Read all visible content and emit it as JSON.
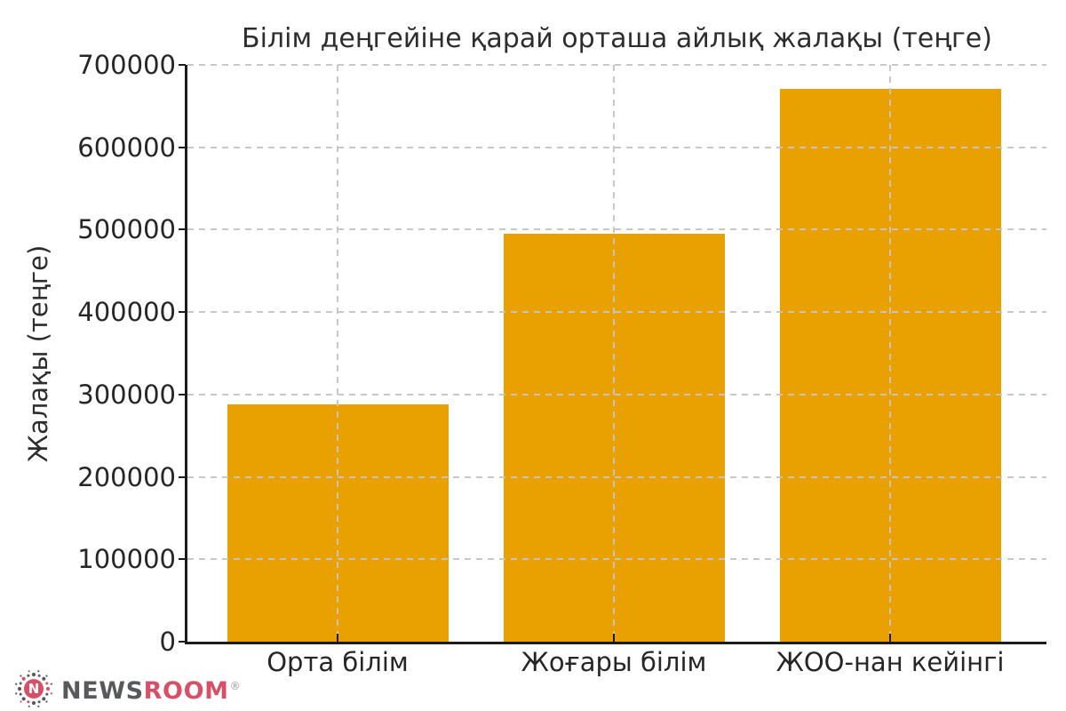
{
  "chart_data": {
    "type": "bar",
    "title": "Білім деңгейіне қарай орташа айлық жалақы (теңге)",
    "ylabel": "Жалақы (теңге)",
    "xlabel": "",
    "categories": [
      "Орта білім",
      "Жоғары білім",
      "ЖОО-нан кейінгі"
    ],
    "values": [
      288000,
      495000,
      671000
    ],
    "ylim": [
      0,
      700000
    ],
    "yticks": [
      0,
      100000,
      200000,
      300000,
      400000,
      500000,
      600000,
      700000
    ],
    "bar_color": "#E8A100",
    "grid": true,
    "grid_style": "dashed",
    "grid_over_bars": true,
    "legend": false,
    "background": "#FFFFFF"
  },
  "watermark": {
    "icon": "newsroom-burst-icon",
    "icon_letter": "N",
    "text_primary": "NEWS",
    "text_secondary": "ROOM",
    "registered_mark": "®",
    "primary_color": "#58595B",
    "secondary_color": "#D85068"
  }
}
